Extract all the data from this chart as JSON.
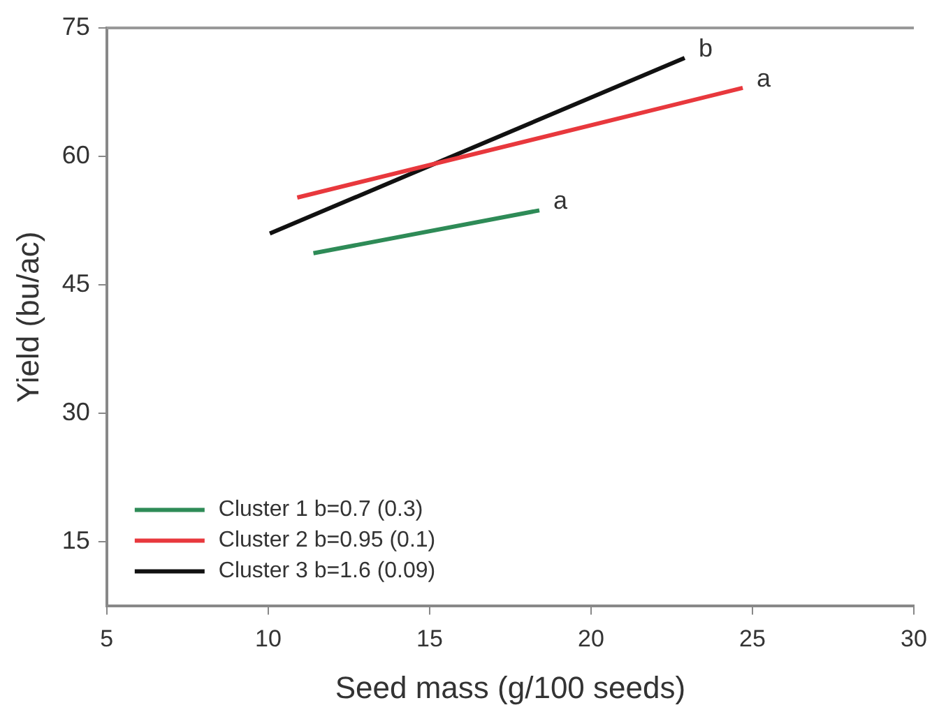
{
  "chart_data": {
    "type": "line",
    "xlabel": "Seed mass (g/100 seeds)",
    "ylabel": "Yield (bu/ac)",
    "xlim": [
      5,
      30
    ],
    "xticks": [
      5,
      10,
      15,
      20,
      25,
      30
    ],
    "ylim": [
      7.5,
      75
    ],
    "yticks": [
      15,
      30,
      45,
      60,
      75
    ],
    "series": [
      {
        "name": "Cluster 1 b=0.7 (0.3)",
        "color": "#2e8b57",
        "x": [
          11.4,
          18.4
        ],
        "values": [
          48.7,
          53.7
        ]
      },
      {
        "name": "Cluster 2 b=0.95 (0.1)",
        "color": "#e8383d",
        "x": [
          10.9,
          24.7
        ],
        "values": [
          55.2,
          68.0
        ]
      },
      {
        "name": "Cluster 3 b=1.6 (0.09)",
        "color": "#111111",
        "x": [
          10.05,
          22.9
        ],
        "values": [
          51.0,
          71.5
        ]
      }
    ],
    "annotations": [
      {
        "text": "a",
        "x": 18.4,
        "y": 53.7
      },
      {
        "text": "a",
        "x": 24.7,
        "y": 68.0
      },
      {
        "text": "b",
        "x": 22.9,
        "y": 71.5
      }
    ],
    "grid": false,
    "legend": "bottom left",
    "marker": "none",
    "line_style": "solid"
  }
}
